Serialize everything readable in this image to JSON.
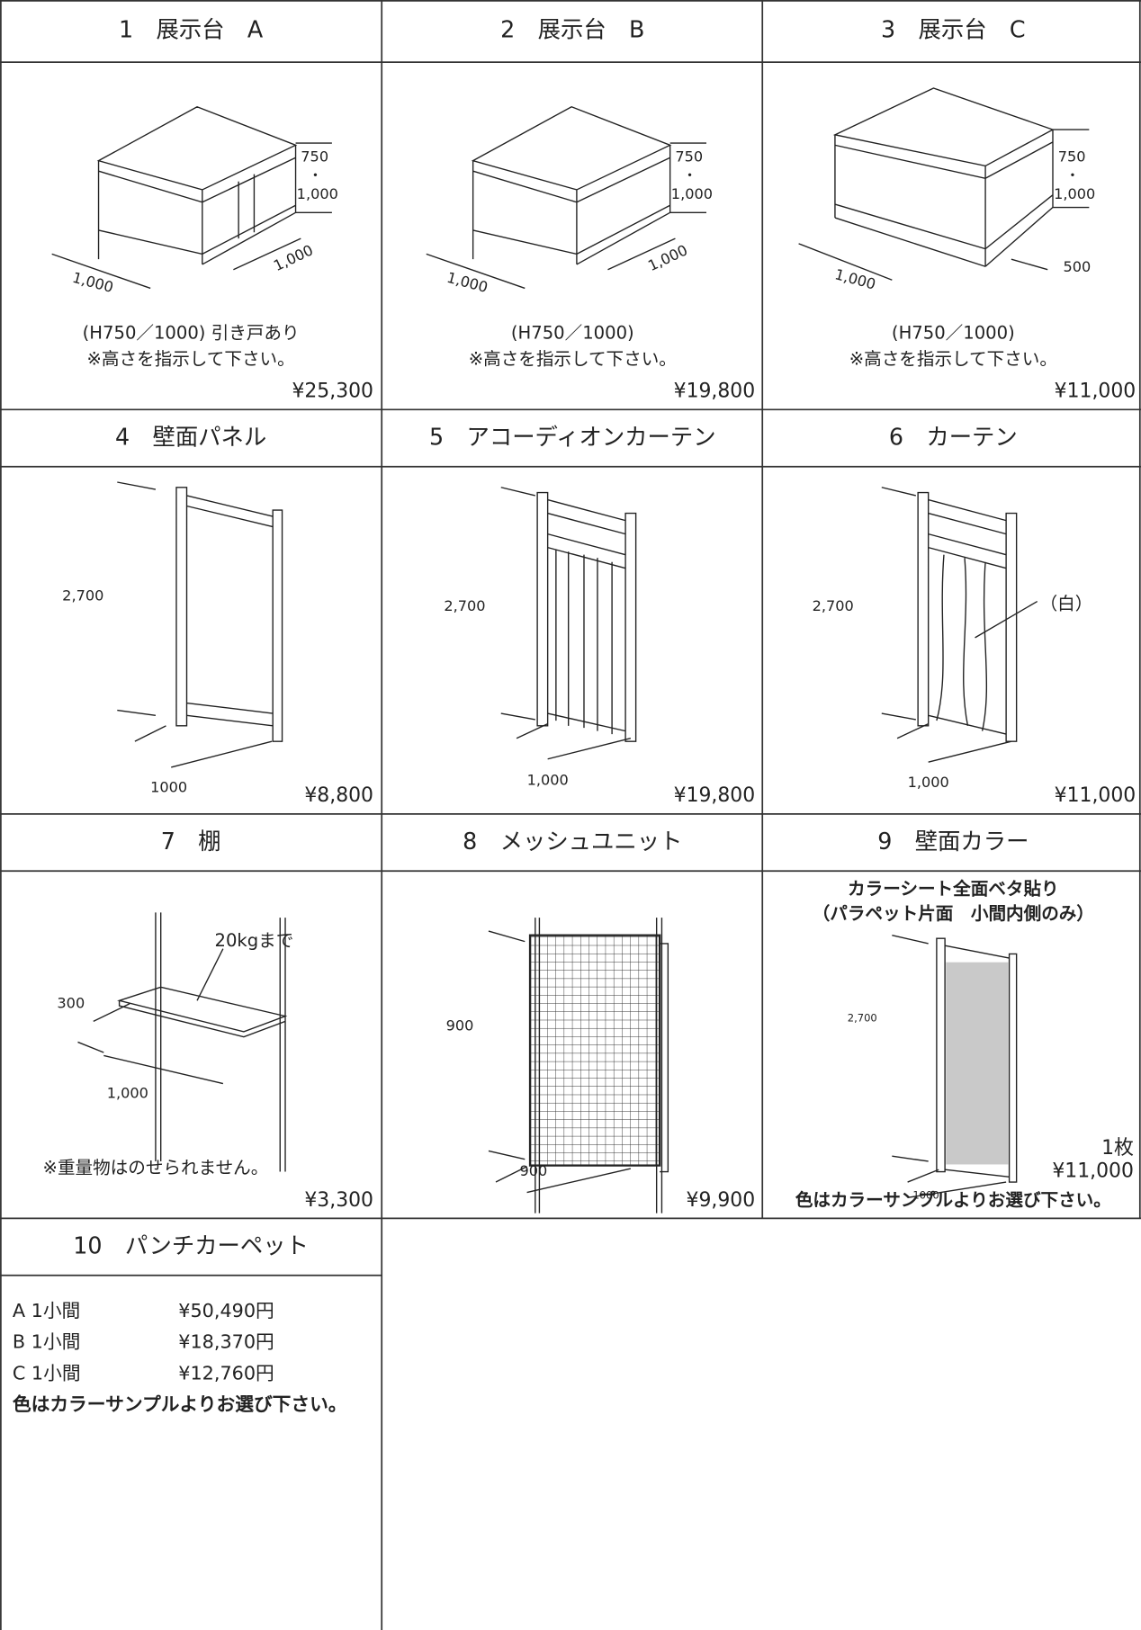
{
  "items": [
    {
      "title": "1　展示台　A",
      "dimensions": [
        "750",
        "・",
        "1,000",
        "1,000",
        "1,000"
      ],
      "notes": [
        "(H750／1000) 引き戸あり",
        "※高さを指示して下さい。"
      ],
      "price": "¥25,300"
    },
    {
      "title": "2　展示台　B",
      "dimensions": [
        "750",
        "・",
        "1,000",
        "1,000",
        "1,000"
      ],
      "notes": [
        "(H750／1000)",
        "※高さを指示して下さい。"
      ],
      "price": "¥19,800"
    },
    {
      "title": "3　展示台　C",
      "dimensions": [
        "750",
        "・",
        "1,000",
        "1,000",
        "500"
      ],
      "notes": [
        "(H750／1000)",
        "※高さを指示して下さい。"
      ],
      "price": "¥11,000"
    },
    {
      "title": "4　壁面パネル",
      "dimensions": [
        "2,700",
        "1000"
      ],
      "price": "¥8,800"
    },
    {
      "title": "5　アコーディオンカーテン",
      "dimensions": [
        "2,700",
        "1,000"
      ],
      "price": "¥19,800"
    },
    {
      "title": "6　カーテン",
      "dimensions": [
        "2,700",
        "1,000"
      ],
      "annotation": "（白）",
      "price": "¥11,000"
    },
    {
      "title": "7　棚",
      "dimensions": [
        "300",
        "1,000"
      ],
      "annotation": "20kgまで",
      "notes": [
        "※重量物はのせられません。"
      ],
      "price": "¥3,300"
    },
    {
      "title": "8　メッシュユニット",
      "dimensions": [
        "900",
        "900"
      ],
      "price": "¥9,900"
    },
    {
      "title": "9　壁面カラー",
      "notes": [
        "カラーシート全面ベタ貼り",
        "（パラペット片面　小間内側のみ）",
        "色はカラーサンプルよりお選び下さい。"
      ],
      "dimensions": [
        "2,700",
        "1000"
      ],
      "unit": "1枚",
      "price": "¥11,000"
    },
    {
      "title": "10　パンチカーペット",
      "rows": [
        [
          "A 1小間",
          "¥50,490円"
        ],
        [
          "B 1小間",
          "¥18,370円"
        ],
        [
          "C 1小間",
          "¥12,760円"
        ]
      ],
      "notes": [
        "色はカラーサンプルよりお選び下さい。"
      ]
    }
  ]
}
